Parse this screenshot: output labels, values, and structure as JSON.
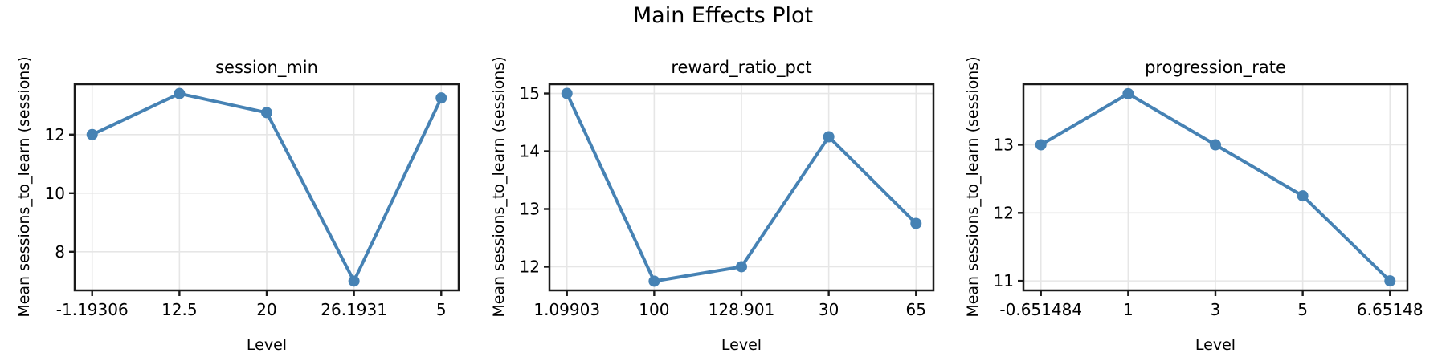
{
  "figure": {
    "title": "Main Effects Plot"
  },
  "colors": {
    "line": "#4682B4",
    "marker": "#4682B4",
    "grid": "#e6e6e6",
    "spine": "#1a1a1a",
    "tick": "#1a1a1a",
    "text": "#000000",
    "background": "#ffffff"
  },
  "chart_data": [
    {
      "type": "line",
      "title": "session_min",
      "xlabel": "Level",
      "ylabel": "Mean sessions_to_learn (sessions)",
      "categories": [
        "-1.19306",
        "12.5",
        "20",
        "26.1931",
        "5"
      ],
      "values": [
        12.0,
        13.4,
        12.75,
        7.0,
        13.25
      ],
      "yticks": [
        8,
        10,
        12
      ],
      "ylim": [
        6.68,
        13.72
      ],
      "grid": true,
      "legend": "none"
    },
    {
      "type": "line",
      "title": "reward_ratio_pct",
      "xlabel": "Level",
      "ylabel": "Mean sessions_to_learn (sessions)",
      "categories": [
        "1.09903",
        "100",
        "128.901",
        "30",
        "65"
      ],
      "values": [
        15.0,
        11.75,
        12.0,
        14.25,
        12.75
      ],
      "yticks": [
        12,
        13,
        14,
        15
      ],
      "ylim": [
        11.59,
        15.16
      ],
      "grid": true,
      "legend": "none"
    },
    {
      "type": "line",
      "title": "progression_rate",
      "xlabel": "Level",
      "ylabel": "Mean sessions_to_learn (sessions)",
      "categories": [
        "-0.651484",
        "1",
        "3",
        "5",
        "6.65148"
      ],
      "values": [
        13.0,
        13.75,
        13.0,
        12.25,
        11.0
      ],
      "yticks": [
        11,
        12,
        13
      ],
      "ylim": [
        10.86,
        13.89
      ],
      "grid": true,
      "legend": "none"
    }
  ]
}
